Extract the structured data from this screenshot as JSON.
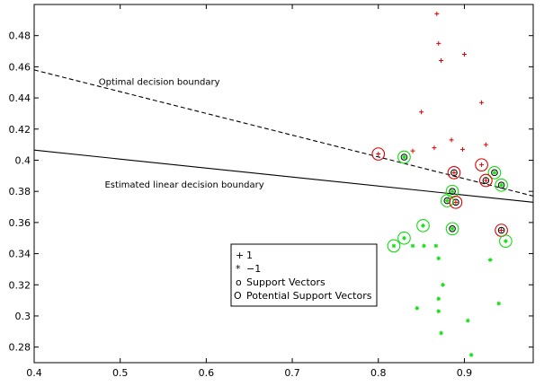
{
  "chart_data": {
    "type": "scatter",
    "title": "",
    "xlabel": "",
    "ylabel": "",
    "xlim": [
      0.4,
      0.98
    ],
    "ylim": [
      0.27,
      0.5
    ],
    "grid": false,
    "xticks": [
      0.4,
      0.5,
      0.6,
      0.7,
      0.8,
      0.9
    ],
    "xtick_labels": [
      "0.4",
      "0.5",
      "0.6",
      "0.7",
      "0.8",
      "0.9"
    ],
    "yticks": [
      0.28,
      0.3,
      0.32,
      0.34,
      0.36,
      0.38,
      0.4,
      0.42,
      0.44,
      0.46,
      0.48
    ],
    "ytick_labels": [
      "0.28",
      "0.3",
      "0.32",
      "0.34",
      "0.36",
      "0.38",
      "0.4",
      "0.42",
      "0.44",
      "0.46",
      "0.48"
    ],
    "colors": {
      "positive": "#e00000",
      "negative": "#11dd11",
      "line": "#000000"
    },
    "lines": [
      {
        "name": "Optimal decision boundary",
        "style": "dashed",
        "x": [
          0.4,
          0.98
        ],
        "y": [
          0.458,
          0.377
        ]
      },
      {
        "name": "Estimated linear decision boundary",
        "style": "solid",
        "x": [
          0.4,
          0.98
        ],
        "y": [
          0.4065,
          0.373
        ]
      }
    ],
    "annotations": [
      {
        "text": "Optimal decision boundary",
        "x": 0.475,
        "y": 0.4485
      },
      {
        "text": "Estimated linear decision boundary",
        "x": 0.482,
        "y": 0.3823
      }
    ],
    "series": [
      {
        "name": "1",
        "marker": "+",
        "color": "#e00000",
        "points": [
          [
            0.868,
            0.494
          ],
          [
            0.87,
            0.475
          ],
          [
            0.873,
            0.464
          ],
          [
            0.9,
            0.468
          ],
          [
            0.92,
            0.437
          ],
          [
            0.85,
            0.431
          ],
          [
            0.885,
            0.413
          ],
          [
            0.865,
            0.408
          ],
          [
            0.925,
            0.41
          ],
          [
            0.84,
            0.406
          ],
          [
            0.898,
            0.407
          ],
          [
            0.8,
            0.404
          ],
          [
            0.888,
            0.392
          ],
          [
            0.92,
            0.397
          ],
          [
            0.925,
            0.387
          ],
          [
            0.89,
            0.373
          ],
          [
            0.943,
            0.355
          ]
        ]
      },
      {
        "name": "−1",
        "marker": "*",
        "color": "#11dd11",
        "points": [
          [
            0.83,
            0.402
          ],
          [
            0.935,
            0.392
          ],
          [
            0.943,
            0.384
          ],
          [
            0.886,
            0.38
          ],
          [
            0.88,
            0.374
          ],
          [
            0.852,
            0.358
          ],
          [
            0.886,
            0.356
          ],
          [
            0.948,
            0.348
          ],
          [
            0.83,
            0.35
          ],
          [
            0.818,
            0.345
          ],
          [
            0.84,
            0.345
          ],
          [
            0.853,
            0.345
          ],
          [
            0.867,
            0.345
          ],
          [
            0.87,
            0.337
          ],
          [
            0.93,
            0.336
          ],
          [
            0.875,
            0.32
          ],
          [
            0.87,
            0.311
          ],
          [
            0.845,
            0.305
          ],
          [
            0.87,
            0.303
          ],
          [
            0.94,
            0.308
          ],
          [
            0.904,
            0.297
          ],
          [
            0.873,
            0.289
          ],
          [
            0.908,
            0.275
          ]
        ]
      }
    ],
    "support_vectors": [
      [
        0.83,
        0.402
      ],
      [
        0.888,
        0.392
      ],
      [
        0.935,
        0.392
      ],
      [
        0.925,
        0.387
      ],
      [
        0.943,
        0.384
      ],
      [
        0.886,
        0.38
      ],
      [
        0.88,
        0.374
      ],
      [
        0.89,
        0.373
      ],
      [
        0.886,
        0.356
      ],
      [
        0.943,
        0.355
      ]
    ],
    "potential_support_vectors": [
      {
        "x": 0.8,
        "y": 0.404,
        "class": "1"
      },
      {
        "x": 0.83,
        "y": 0.402,
        "class": "-1"
      },
      {
        "x": 0.888,
        "y": 0.392,
        "class": "1"
      },
      {
        "x": 0.92,
        "y": 0.397,
        "class": "1"
      },
      {
        "x": 0.935,
        "y": 0.392,
        "class": "-1"
      },
      {
        "x": 0.925,
        "y": 0.387,
        "class": "1"
      },
      {
        "x": 0.943,
        "y": 0.384,
        "class": "-1"
      },
      {
        "x": 0.886,
        "y": 0.38,
        "class": "-1"
      },
      {
        "x": 0.88,
        "y": 0.374,
        "class": "-1"
      },
      {
        "x": 0.89,
        "y": 0.373,
        "class": "1"
      },
      {
        "x": 0.852,
        "y": 0.358,
        "class": "-1"
      },
      {
        "x": 0.886,
        "y": 0.356,
        "class": "-1"
      },
      {
        "x": 0.943,
        "y": 0.355,
        "class": "1"
      },
      {
        "x": 0.948,
        "y": 0.348,
        "class": "-1"
      },
      {
        "x": 0.83,
        "y": 0.35,
        "class": "-1"
      },
      {
        "x": 0.818,
        "y": 0.345,
        "class": "-1"
      }
    ],
    "legend": {
      "placement": "lower-center",
      "entries": [
        {
          "symbol": "+",
          "label": "1"
        },
        {
          "symbol": "*",
          "label": "−1"
        },
        {
          "symbol": "o",
          "label": "Support Vectors"
        },
        {
          "symbol": "O",
          "label": "Potential Support Vectors"
        }
      ]
    }
  }
}
